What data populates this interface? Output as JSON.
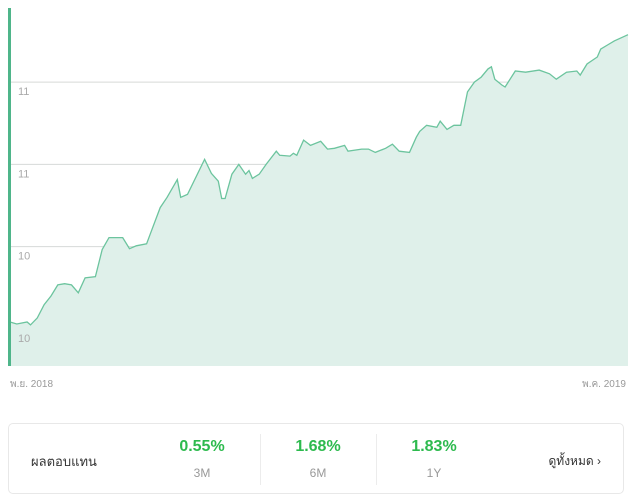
{
  "chart_data": {
    "type": "area",
    "title": "",
    "xlabel": "",
    "ylabel": "",
    "x_tick_labels": [
      "พ.ย. 2018",
      "พ.ค. 2019"
    ],
    "y_ticks": [
      {
        "value": 10.2,
        "label": "10"
      },
      {
        "value": 10.4,
        "label": "10"
      },
      {
        "value": 10.6,
        "label": "11"
      },
      {
        "value": 10.8,
        "label": "11"
      }
    ],
    "xlim": [
      0,
      181
    ],
    "ylim": [
      10.11,
      10.98
    ],
    "grid": true,
    "line_color": "#6cc49e",
    "fill_color": "#dff0ea",
    "x": [
      0,
      2,
      5,
      6,
      8,
      10,
      12,
      14,
      16,
      18,
      20,
      22,
      25,
      27,
      29,
      33,
      35,
      37,
      40,
      41,
      44,
      46,
      49,
      50,
      52,
      57,
      59,
      61,
      62,
      63,
      65,
      67,
      69,
      70,
      71,
      73,
      75,
      78,
      79,
      82,
      83,
      84,
      86,
      88,
      91,
      93,
      95,
      98,
      99,
      103,
      105,
      107,
      110,
      112,
      114,
      117,
      119,
      120,
      122,
      125,
      126,
      128,
      130,
      132,
      134,
      136,
      138,
      140,
      141,
      142,
      144,
      145,
      148,
      151,
      155,
      158,
      160,
      163,
      166,
      167,
      169,
      172,
      173,
      175,
      177,
      181
    ],
    "values": [
      10.217,
      10.212,
      10.217,
      10.21,
      10.227,
      10.259,
      10.28,
      10.307,
      10.31,
      10.307,
      10.288,
      10.324,
      10.327,
      10.393,
      10.422,
      10.422,
      10.395,
      10.402,
      10.407,
      10.429,
      10.495,
      10.52,
      10.563,
      10.52,
      10.527,
      10.612,
      10.578,
      10.559,
      10.517,
      10.517,
      10.576,
      10.6,
      10.576,
      10.585,
      10.566,
      10.576,
      10.6,
      10.632,
      10.622,
      10.62,
      10.627,
      10.622,
      10.659,
      10.646,
      10.656,
      10.637,
      10.639,
      10.646,
      10.632,
      10.637,
      10.637,
      10.629,
      10.639,
      10.649,
      10.632,
      10.629,
      10.666,
      10.68,
      10.695,
      10.69,
      10.705,
      10.685,
      10.695,
      10.695,
      10.776,
      10.8,
      10.812,
      10.832,
      10.837,
      10.807,
      10.793,
      10.788,
      10.827,
      10.824,
      10.829,
      10.82,
      10.807,
      10.824,
      10.827,
      10.817,
      10.844,
      10.861,
      10.88,
      10.89,
      10.9,
      10.915
    ]
  },
  "returns": {
    "label": "ผลตอบแทน",
    "items": [
      {
        "value": "0.55%",
        "period": "3M"
      },
      {
        "value": "1.68%",
        "period": "6M"
      },
      {
        "value": "1.83%",
        "period": "1Y"
      }
    ],
    "view_all": "ดูทั้งหมด ›"
  }
}
